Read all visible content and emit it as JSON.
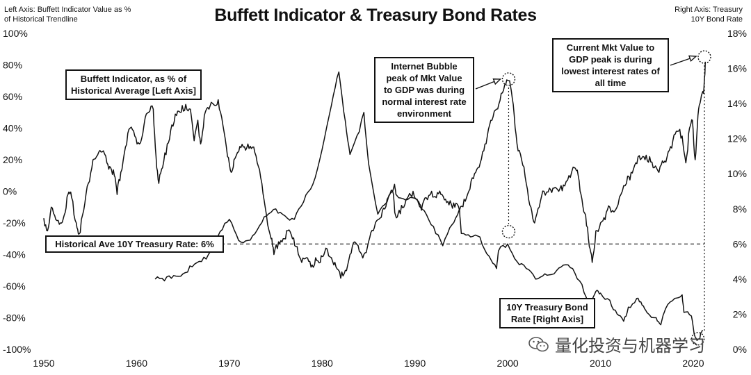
{
  "header": {
    "title": "Buffett Indicator & Treasury Bond Rates",
    "left_axis_note": [
      "Left Axis: Buffett Indicator Value as %",
      "of Historical Trendline"
    ],
    "right_axis_note": [
      "Right Axis: Treasury",
      "10Y Bond Rate"
    ]
  },
  "annotations": {
    "buffett_label": [
      "Buffett Indicator, as % of",
      "Historical Average [Left Axis]"
    ],
    "historical_ave": "Historical Ave 10Y Treasury Rate: 6%",
    "internet_bubble": [
      "Internet Bubble",
      "peak of Mkt Value",
      "to GDP was during",
      "normal interest rate",
      "environment"
    ],
    "current_peak": [
      "Current Mkt Value to",
      "GDP peak is during",
      "lowest interest rates of",
      "all time"
    ],
    "treasury_label": [
      "10Y Treasury Bond",
      "Rate [Right Axis]"
    ]
  },
  "watermark": {
    "text": "量化投资与机器学习",
    "icon": "wechat-icon"
  },
  "colors": {
    "line": "#111111",
    "background": "#ffffff"
  },
  "chart_data": {
    "type": "line",
    "x_ticks": [
      "1950",
      "1960",
      "1970",
      "1980",
      "1990",
      "2000",
      "2010",
      "2020"
    ],
    "y_left_ticks": [
      "100%",
      "80%",
      "60%",
      "40%",
      "20%",
      "0%",
      "-20%",
      "-40%",
      "-60%",
      "-80%",
      "-100%"
    ],
    "y_right_ticks": [
      "18%",
      "16%",
      "14%",
      "12%",
      "10%",
      "8%",
      "6%",
      "4%",
      "2%",
      "0%"
    ],
    "xlim": [
      1950,
      2021.5
    ],
    "ylim_left": [
      -100,
      100
    ],
    "ylim_right": [
      0,
      18
    ],
    "reference_line": {
      "axis": "right",
      "value": 6,
      "style": "dashed"
    },
    "series": [
      {
        "axis": "left",
        "points": [
          [
            1950.0,
            -17
          ],
          [
            1950.4,
            -25
          ],
          [
            1950.8,
            -10
          ],
          [
            1951.3,
            -18
          ],
          [
            1951.8,
            -20
          ],
          [
            1952.2,
            -15
          ],
          [
            1952.6,
            -2
          ],
          [
            1953.0,
            -4
          ],
          [
            1953.5,
            -20
          ],
          [
            1953.8,
            -27
          ],
          [
            1954.3,
            -12
          ],
          [
            1954.8,
            5
          ],
          [
            1955.3,
            20
          ],
          [
            1955.8,
            23
          ],
          [
            1956.3,
            25
          ],
          [
            1956.8,
            18
          ],
          [
            1957.2,
            15
          ],
          [
            1957.6,
            10
          ],
          [
            1957.9,
            -2
          ],
          [
            1958.3,
            12
          ],
          [
            1958.8,
            28
          ],
          [
            1959.3,
            40
          ],
          [
            1959.8,
            35
          ],
          [
            1960.3,
            30
          ],
          [
            1960.8,
            42
          ],
          [
            1961.3,
            50
          ],
          [
            1961.8,
            52
          ],
          [
            1962.1,
            22
          ],
          [
            1962.4,
            5
          ],
          [
            1962.8,
            15
          ],
          [
            1963.3,
            30
          ],
          [
            1963.8,
            42
          ],
          [
            1964.3,
            48
          ],
          [
            1964.8,
            50
          ],
          [
            1965.3,
            55
          ],
          [
            1965.8,
            52
          ],
          [
            1966.2,
            32
          ],
          [
            1966.6,
            45
          ],
          [
            1966.9,
            30
          ],
          [
            1967.3,
            48
          ],
          [
            1967.8,
            52
          ],
          [
            1968.3,
            55
          ],
          [
            1968.8,
            58
          ],
          [
            1969.3,
            42
          ],
          [
            1969.8,
            22
          ],
          [
            1970.2,
            12
          ],
          [
            1970.5,
            20
          ],
          [
            1971.0,
            25
          ],
          [
            1971.5,
            28
          ],
          [
            1972.0,
            30
          ],
          [
            1972.5,
            28
          ],
          [
            1973.0,
            18
          ],
          [
            1973.5,
            5
          ],
          [
            1974.0,
            -15
          ],
          [
            1974.5,
            -30
          ],
          [
            1974.8,
            -40
          ],
          [
            1975.3,
            -32
          ],
          [
            1975.8,
            -30
          ],
          [
            1976.3,
            -25
          ],
          [
            1976.8,
            -30
          ],
          [
            1977.3,
            -35
          ],
          [
            1977.8,
            -45
          ],
          [
            1978.3,
            -42
          ],
          [
            1978.8,
            -48
          ],
          [
            1979.3,
            -42
          ],
          [
            1979.8,
            -45
          ],
          [
            1980.2,
            -40
          ],
          [
            1980.6,
            -38
          ],
          [
            1981.0,
            -42
          ],
          [
            1981.5,
            -48
          ],
          [
            1982.0,
            -55
          ],
          [
            1982.5,
            -50
          ],
          [
            1983.0,
            -40
          ],
          [
            1983.5,
            -32
          ],
          [
            1984.0,
            -38
          ],
          [
            1984.5,
            -40
          ],
          [
            1985.0,
            -32
          ],
          [
            1985.5,
            -25
          ],
          [
            1986.0,
            -18
          ],
          [
            1986.5,
            -12
          ],
          [
            1987.0,
            -5
          ],
          [
            1987.6,
            0
          ],
          [
            1987.9,
            -15
          ],
          [
            1988.3,
            -12
          ],
          [
            1988.8,
            -10
          ],
          [
            1989.3,
            -3
          ],
          [
            1989.8,
            0
          ],
          [
            1990.3,
            -6
          ],
          [
            1990.7,
            -12
          ],
          [
            1991.2,
            -4
          ],
          [
            1991.8,
            0
          ],
          [
            1992.3,
            -4
          ],
          [
            1992.8,
            -2
          ],
          [
            1993.3,
            -5
          ],
          [
            1993.8,
            -6
          ],
          [
            1994.3,
            -10
          ],
          [
            1994.8,
            -12
          ],
          [
            1995.3,
            -5
          ],
          [
            1995.8,
            0
          ],
          [
            1996.3,
            8
          ],
          [
            1996.8,
            15
          ],
          [
            1997.3,
            25
          ],
          [
            1997.8,
            35
          ],
          [
            1998.3,
            45
          ],
          [
            1998.8,
            52
          ],
          [
            1999.3,
            62
          ],
          [
            1999.8,
            68
          ],
          [
            2000.2,
            70
          ],
          [
            2000.6,
            55
          ],
          [
            2001.0,
            30
          ],
          [
            2001.5,
            20
          ],
          [
            2002.0,
            5
          ],
          [
            2002.5,
            -10
          ],
          [
            2002.9,
            -20
          ],
          [
            2003.4,
            -10
          ],
          [
            2003.9,
            0
          ],
          [
            2004.5,
            2
          ],
          [
            2005.0,
            2
          ],
          [
            2005.5,
            0
          ],
          [
            2006.0,
            4
          ],
          [
            2006.6,
            10
          ],
          [
            2007.2,
            15
          ],
          [
            2007.6,
            10
          ],
          [
            2008.0,
            -5
          ],
          [
            2008.4,
            -15
          ],
          [
            2008.8,
            -35
          ],
          [
            2009.1,
            -45
          ],
          [
            2009.5,
            -25
          ],
          [
            2010.0,
            -20
          ],
          [
            2010.5,
            -18
          ],
          [
            2011.0,
            -10
          ],
          [
            2011.6,
            -12
          ],
          [
            2012.2,
            -2
          ],
          [
            2012.8,
            5
          ],
          [
            2013.3,
            12
          ],
          [
            2013.8,
            18
          ],
          [
            2014.3,
            20
          ],
          [
            2014.8,
            20
          ],
          [
            2015.3,
            22
          ],
          [
            2015.8,
            15
          ],
          [
            2016.3,
            12
          ],
          [
            2016.8,
            18
          ],
          [
            2017.3,
            25
          ],
          [
            2017.8,
            32
          ],
          [
            2018.3,
            38
          ],
          [
            2018.8,
            35
          ],
          [
            2019.2,
            18
          ],
          [
            2019.6,
            40
          ],
          [
            2019.9,
            45
          ],
          [
            2020.2,
            20
          ],
          [
            2020.5,
            48
          ],
          [
            2020.8,
            58
          ],
          [
            2021.1,
            62
          ],
          [
            2021.3,
            82
          ]
        ]
      },
      {
        "axis": "right",
        "points": [
          [
            1962.0,
            4.0
          ],
          [
            1963.0,
            3.9
          ],
          [
            1964.0,
            4.2
          ],
          [
            1965.0,
            4.3
          ],
          [
            1966.0,
            4.7
          ],
          [
            1967.0,
            5.0
          ],
          [
            1968.0,
            5.6
          ],
          [
            1969.0,
            6.7
          ],
          [
            1970.0,
            7.4
          ],
          [
            1971.0,
            6.2
          ],
          [
            1972.0,
            6.2
          ],
          [
            1973.0,
            6.8
          ],
          [
            1974.0,
            7.6
          ],
          [
            1975.0,
            8.0
          ],
          [
            1976.0,
            7.6
          ],
          [
            1977.0,
            7.4
          ],
          [
            1978.0,
            8.4
          ],
          [
            1979.0,
            9.4
          ],
          [
            1980.0,
            11.4
          ],
          [
            1981.0,
            13.9
          ],
          [
            1981.8,
            15.8
          ],
          [
            1982.5,
            13.0
          ],
          [
            1983.0,
            11.1
          ],
          [
            1984.0,
            12.4
          ],
          [
            1984.5,
            13.5
          ],
          [
            1985.0,
            10.6
          ],
          [
            1986.0,
            7.7
          ],
          [
            1987.0,
            8.4
          ],
          [
            1987.8,
            9.4
          ],
          [
            1988.0,
            8.8
          ],
          [
            1989.0,
            8.5
          ],
          [
            1990.0,
            8.6
          ],
          [
            1991.0,
            7.9
          ],
          [
            1992.0,
            7.0
          ],
          [
            1993.0,
            5.9
          ],
          [
            1994.0,
            7.1
          ],
          [
            1994.8,
            8.0
          ],
          [
            1995.0,
            6.6
          ],
          [
            1996.0,
            6.4
          ],
          [
            1997.0,
            6.4
          ],
          [
            1998.0,
            5.3
          ],
          [
            1998.8,
            4.6
          ],
          [
            1999.0,
            5.6
          ],
          [
            2000.0,
            6.0
          ],
          [
            2001.0,
            5.0
          ],
          [
            2002.0,
            4.6
          ],
          [
            2003.0,
            4.0
          ],
          [
            2004.0,
            4.3
          ],
          [
            2005.0,
            4.3
          ],
          [
            2006.0,
            4.8
          ],
          [
            2007.0,
            4.6
          ],
          [
            2008.0,
            3.7
          ],
          [
            2008.9,
            2.4
          ],
          [
            2009.5,
            3.3
          ],
          [
            2010.0,
            3.2
          ],
          [
            2011.0,
            2.8
          ],
          [
            2011.8,
            2.0
          ],
          [
            2012.5,
            1.6
          ],
          [
            2013.0,
            2.4
          ],
          [
            2013.9,
            2.9
          ],
          [
            2014.5,
            2.5
          ],
          [
            2015.0,
            2.1
          ],
          [
            2016.0,
            1.8
          ],
          [
            2016.5,
            1.4
          ],
          [
            2017.0,
            2.3
          ],
          [
            2018.0,
            2.9
          ],
          [
            2018.8,
            3.1
          ],
          [
            2019.0,
            2.1
          ],
          [
            2019.8,
            1.9
          ],
          [
            2020.2,
            0.7
          ],
          [
            2020.6,
            0.6
          ],
          [
            2021.0,
            1.1
          ]
        ]
      }
    ],
    "markers": [
      {
        "axis": "left",
        "x": 2000.1,
        "y": 71
      },
      {
        "axis": "right",
        "x": 2000.1,
        "y": 6.7
      },
      {
        "axis": "left",
        "x": 2021.2,
        "y": 85
      },
      {
        "axis": "right",
        "x": 2020.5,
        "y": 0.6
      }
    ]
  }
}
